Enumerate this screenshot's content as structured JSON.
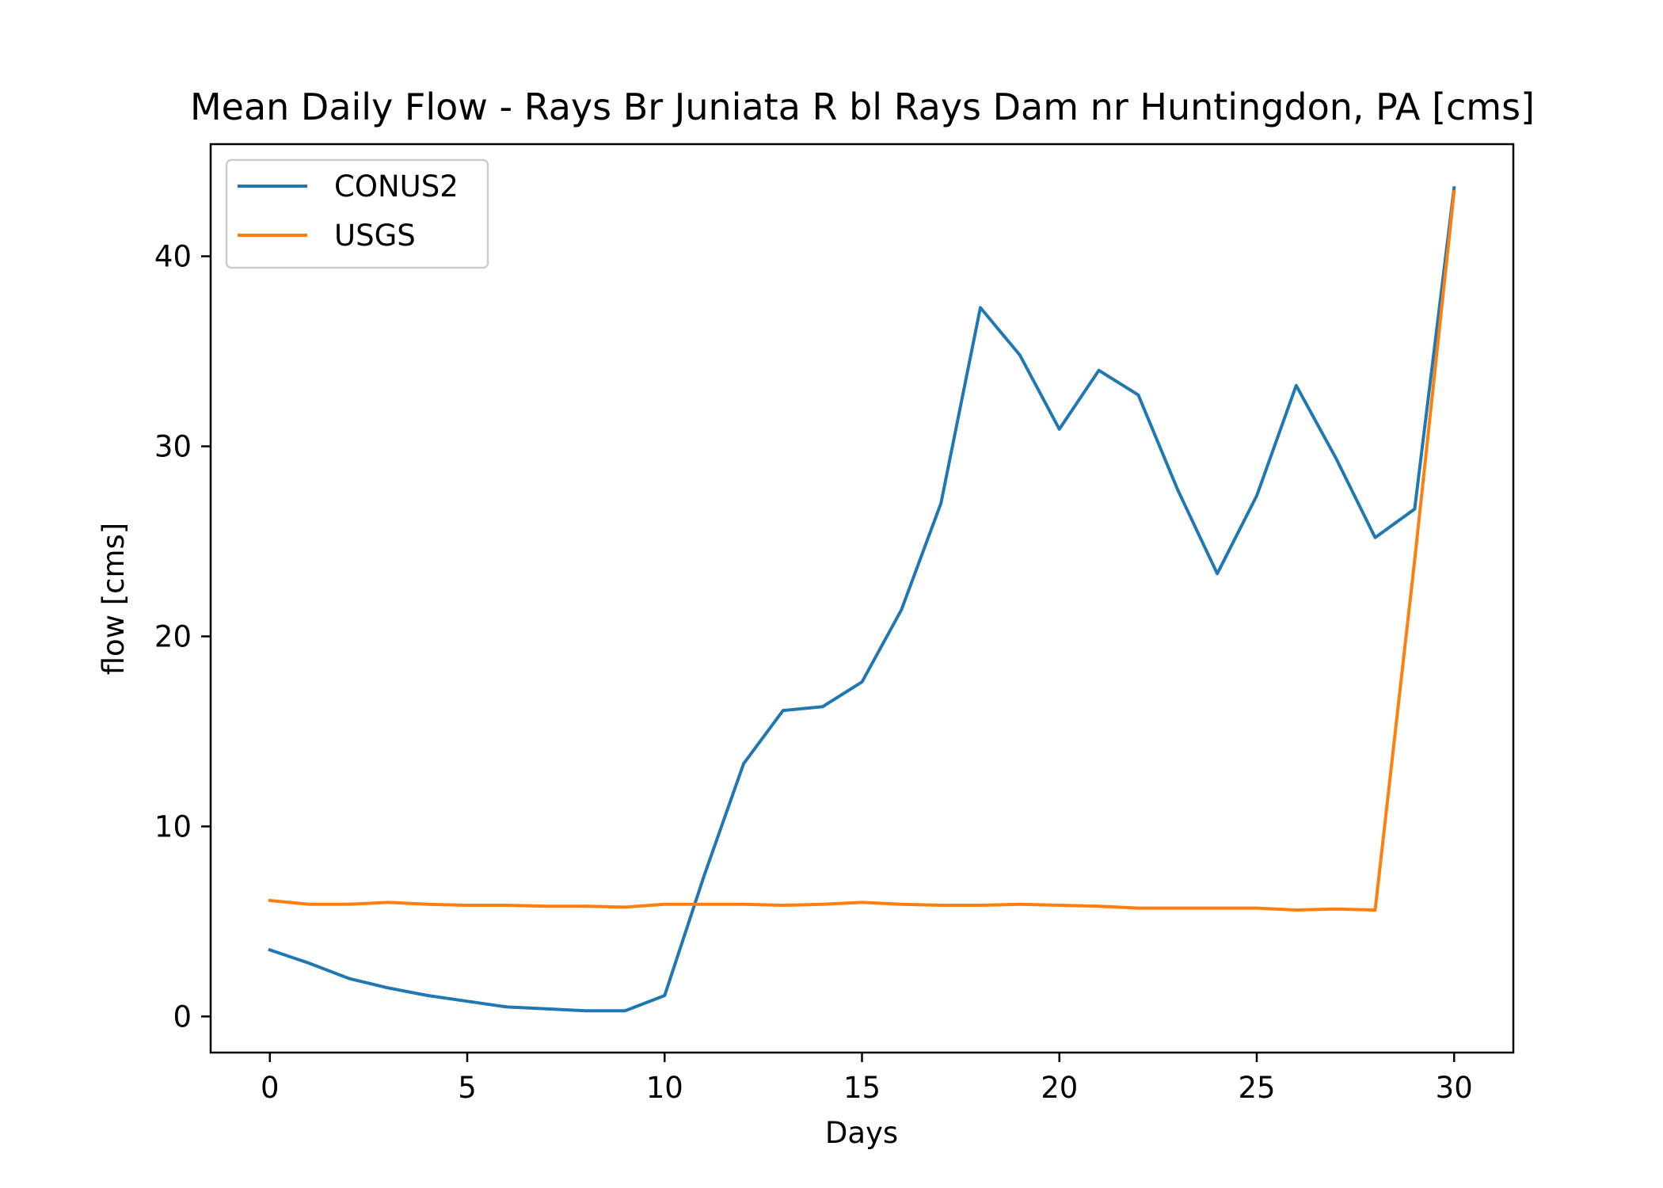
{
  "chart_data": {
    "type": "line",
    "title": "Mean Daily Flow - Rays Br Juniata R bl Rays Dam nr Huntingdon, PA [cms]",
    "xlabel": "Days",
    "ylabel": "flow [cms]",
    "xlim": [
      -1.5,
      31.5
    ],
    "ylim": [
      -1.9,
      45.9
    ],
    "xticks": [
      0,
      5,
      10,
      15,
      20,
      25,
      30
    ],
    "yticks": [
      0,
      10,
      20,
      30,
      40
    ],
    "grid": false,
    "legend_position": "upper-left",
    "x": [
      0,
      1,
      2,
      3,
      4,
      5,
      6,
      7,
      8,
      9,
      10,
      11,
      12,
      13,
      14,
      15,
      16,
      17,
      18,
      19,
      20,
      21,
      22,
      23,
      24,
      25,
      26,
      27,
      28,
      29,
      30
    ],
    "series": [
      {
        "name": "CONUS2",
        "color": "#1f77b4",
        "values": [
          3.5,
          2.8,
          2.0,
          1.5,
          1.1,
          0.8,
          0.5,
          0.4,
          0.3,
          0.3,
          1.1,
          7.4,
          13.3,
          16.1,
          16.3,
          17.6,
          21.4,
          27.0,
          37.3,
          34.8,
          30.9,
          34.0,
          32.7,
          27.7,
          23.3,
          27.4,
          33.2,
          29.4,
          25.2,
          26.7,
          43.6
        ]
      },
      {
        "name": "USGS",
        "color": "#ff7f0e",
        "values": [
          6.1,
          5.9,
          5.9,
          6.0,
          5.9,
          5.85,
          5.85,
          5.8,
          5.8,
          5.75,
          5.9,
          5.9,
          5.9,
          5.85,
          5.9,
          6.0,
          5.9,
          5.85,
          5.85,
          5.9,
          5.85,
          5.8,
          5.7,
          5.7,
          5.7,
          5.7,
          5.6,
          5.65,
          5.6,
          24.0,
          43.4
        ]
      }
    ]
  }
}
